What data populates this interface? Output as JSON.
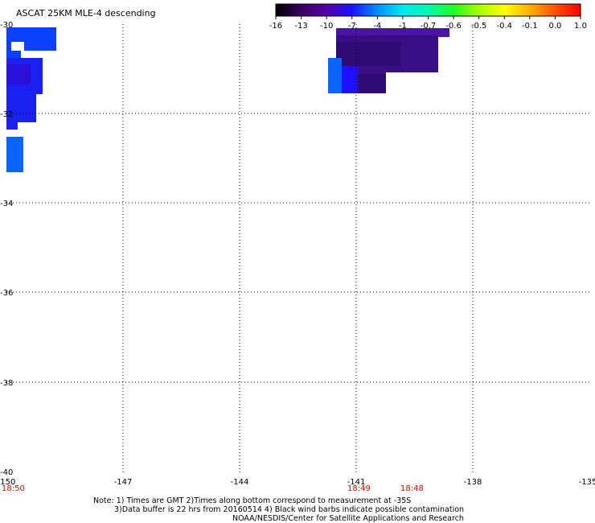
{
  "title": "ASCAT 25KM MLE-4 descending",
  "colorbar": {
    "labels": [
      "-16",
      "-13",
      "-10",
      "-7",
      "-4",
      "-1",
      "-0.7",
      "-0.6",
      "-0.5",
      "-0.4",
      "-0.1",
      "0.0",
      "1.0"
    ],
    "colors": [
      "#000000",
      "#3a0060",
      "#5500a8",
      "#1e10ff",
      "#0090ff",
      "#00e8f0",
      "#00f8b0",
      "#20ff20",
      "#a8ff00",
      "#ffff00",
      "#ffb000",
      "#ff5000",
      "#ff0000"
    ]
  },
  "axes": {
    "x_ticks": [
      "-150",
      "-147",
      "-144",
      "-141",
      "-138",
      "-135"
    ],
    "y_ticks": [
      "-30",
      "-32",
      "-34",
      "-36",
      "-38",
      "-40"
    ],
    "lon_range": [
      -150,
      -135
    ],
    "lat_range": [
      -40,
      -30
    ]
  },
  "time_labels": [
    {
      "text": "18:50",
      "lon": -150.0
    },
    {
      "text": "18:49",
      "lon": -141.0
    },
    {
      "text": "18:48",
      "lon": -139.7
    }
  ],
  "swaths": {
    "left_colors": [
      "#0a40ff",
      "#1a20f0",
      "#2a10d8"
    ],
    "right_colors": [
      "#2e0a72",
      "#3a0f86",
      "#4a14a6",
      "#0a66ff"
    ]
  },
  "notes": {
    "line1": "Note: 1) Times are GMT 2)Times along bottom correspond to measurement at -35S",
    "line2": "3)Data buffer is 22 hrs from 20160514 4) Black wind barbs indicate possible contamination",
    "line3": "NOAA/NESDIS/Center for Satellite Applications and Research"
  }
}
